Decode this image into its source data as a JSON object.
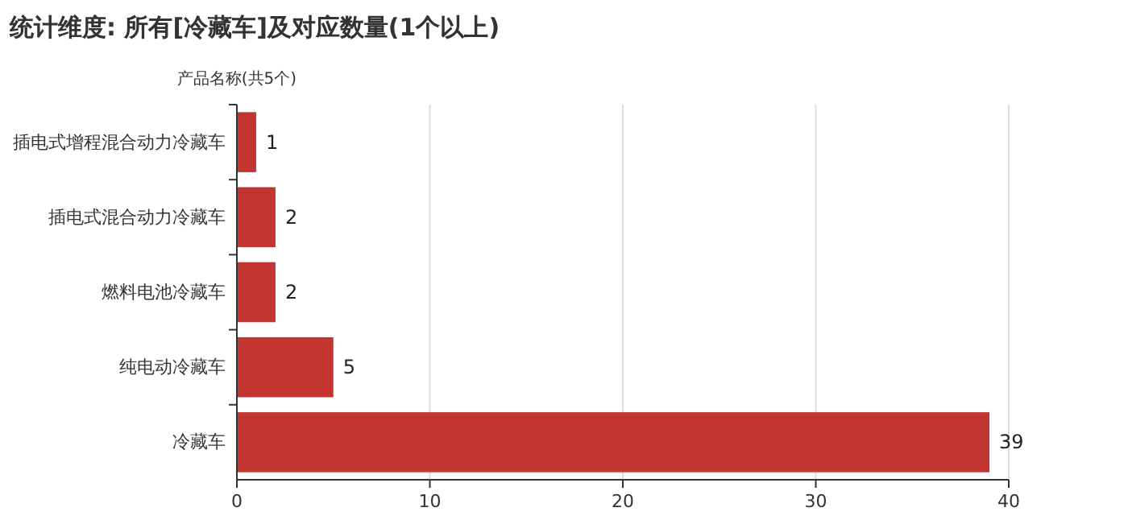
{
  "chart_data": {
    "type": "bar",
    "orientation": "horizontal",
    "title": "统计维度: 所有[冷藏车]及对应数量(1个以上)",
    "ylabel": "产品名称(共5个)",
    "categories": [
      "插电式增程混合动力冷藏车",
      "插电式混合动力冷藏车",
      "燃料电池冷藏车",
      "纯电动冷藏车",
      "冷藏车"
    ],
    "values": [
      1,
      2,
      2,
      5,
      39
    ],
    "color": "#c23531",
    "xlim": [
      0,
      40
    ],
    "xticks": [
      0,
      10,
      20,
      30,
      40
    ],
    "grid": "x",
    "data_labels": true
  }
}
